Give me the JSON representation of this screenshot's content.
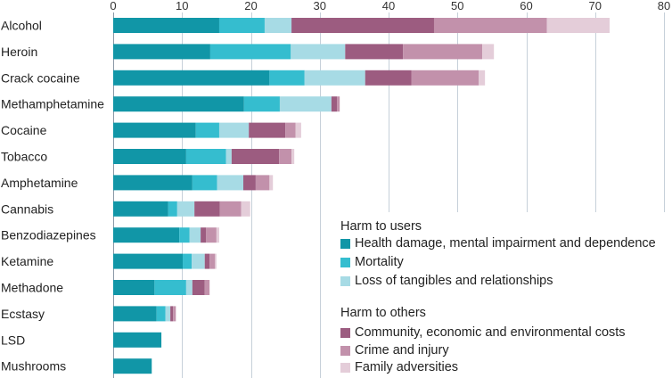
{
  "chart_data": {
    "type": "bar",
    "orientation": "horizontal",
    "stacked": true,
    "categories": [
      "Alcohol",
      "Heroin",
      "Crack cocaine",
      "Methamphetamine",
      "Cocaine",
      "Tobacco",
      "Amphetamine",
      "Cannabis",
      "Benzodiazepines",
      "Ketamine",
      "Methadone",
      "Ecstasy",
      "LSD",
      "Mushrooms"
    ],
    "series": [
      {
        "name": "Health damage, mental impairment and dependence",
        "color": "#1196a7",
        "values": [
          15.4,
          14.1,
          22.7,
          19.0,
          12.0,
          10.6,
          11.5,
          8.0,
          9.6,
          10.1,
          6.0,
          6.3,
          7.0,
          5.6
        ]
      },
      {
        "name": "Mortality",
        "color": "#35bdcf",
        "values": [
          6.6,
          11.7,
          5.1,
          5.2,
          3.4,
          5.8,
          3.6,
          1.3,
          1.5,
          1.3,
          4.6,
          1.3,
          0,
          0
        ]
      },
      {
        "name": "Loss of tangibles and relationships",
        "color": "#a7dbe5",
        "values": [
          3.9,
          7.9,
          8.8,
          7.5,
          4.3,
          0.8,
          3.8,
          2.5,
          1.6,
          1.9,
          0.9,
          0.7,
          0,
          0
        ]
      },
      {
        "name": "Community, economic and environmental costs",
        "color": "#9c5c80",
        "values": [
          20.7,
          8.4,
          6.7,
          0.8,
          5.3,
          6.9,
          1.8,
          3.7,
          0.8,
          0.7,
          1.8,
          0.4,
          0,
          0
        ]
      },
      {
        "name": "Crime and injury",
        "color": "#c291ab",
        "values": [
          16.4,
          11.5,
          9.8,
          0.4,
          1.5,
          1.8,
          2.0,
          3.1,
          1.5,
          0.8,
          0.7,
          0.4,
          0,
          0
        ]
      },
      {
        "name": "Family adversities",
        "color": "#e4cdd9",
        "values": [
          9.1,
          1.7,
          0.9,
          0,
          0.8,
          0.4,
          0.5,
          1.3,
          0.4,
          0.2,
          0,
          0,
          0,
          0
        ]
      }
    ],
    "x_ticks": [
      0,
      10,
      20,
      30,
      40,
      50,
      60,
      70,
      80
    ],
    "xlim": [
      0,
      80
    ],
    "x_axis_position": "top",
    "grid": true,
    "legend": {
      "position": "bottom-right",
      "groups": [
        {
          "title": "Harm to users",
          "series": [
            0,
            1,
            2
          ]
        },
        {
          "title": "Harm to others",
          "series": [
            3,
            4,
            5
          ]
        }
      ]
    }
  }
}
